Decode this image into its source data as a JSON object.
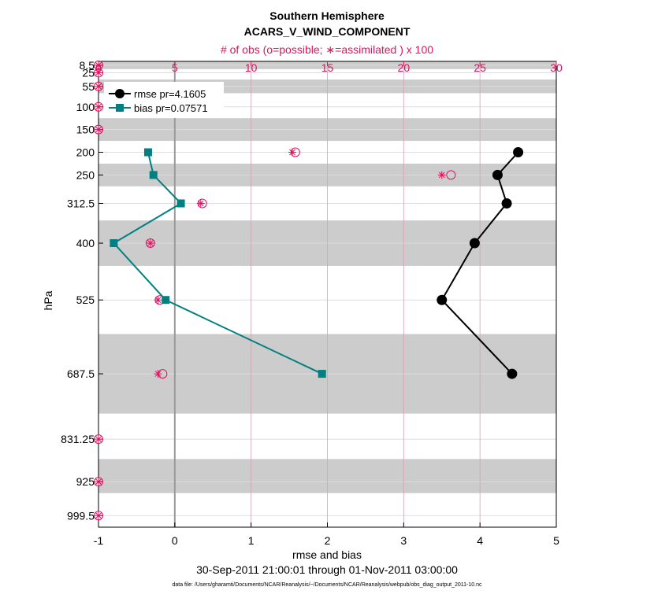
{
  "colors": {
    "rmse": "#000000",
    "bias": "#008080",
    "obs": "#e0115f",
    "band": "#cccccc",
    "grid": "#dddddd",
    "top_grid": "#d9a0b4",
    "zero_line": "#999999"
  },
  "chart_data": {
    "type": "line",
    "title": "Southern Hemisphere",
    "subtitle": "ACARS_V_WIND_COMPONENT",
    "top_axis_label": "# of obs (o=possible; ∗=assimilated ) x 100",
    "xlabel": "rmse and bias",
    "ylabel": "hPa",
    "date_range": "30-Sep-2011 21:00:01 through 01-Nov-2011 03:00:00",
    "footnote": "data file: /Users/gharamti/Documents/NCAR/Reanalysis/~/Documents/NCAR/Reanalysis/webpub/obs_diag_output_2011-10.nc",
    "xlim": [
      -1,
      5
    ],
    "xticks": [
      -1,
      0,
      1,
      2,
      3,
      4,
      5
    ],
    "top_xlim": [
      0,
      30
    ],
    "top_xticks": [
      0,
      5,
      10,
      15,
      20,
      25,
      30
    ],
    "ylim": [
      0,
      1025
    ],
    "yticks": [
      8.5,
      25,
      55,
      100,
      150,
      200,
      250,
      312.5,
      400,
      525,
      687.5,
      831.25,
      925,
      999.5
    ],
    "ytick_labels": [
      "8.5",
      "25",
      "55",
      "100",
      "150",
      "200",
      "250",
      "312.5",
      "400",
      "525",
      "687.5",
      "831.25",
      "925",
      "999.5"
    ],
    "bands": [
      [
        0,
        17
      ],
      [
        40,
        70
      ],
      [
        125,
        175
      ],
      [
        225,
        275
      ],
      [
        350,
        450
      ],
      [
        600,
        775
      ],
      [
        875,
        950
      ]
    ],
    "series": [
      {
        "name": "rmse pr=4.1605",
        "levels": [
          200,
          250,
          312.5,
          400,
          525,
          687.5
        ],
        "values": [
          4.5,
          4.23,
          4.35,
          3.93,
          3.5,
          4.42
        ]
      },
      {
        "name": "bias pr=0.07571",
        "levels": [
          200,
          250,
          312.5,
          400,
          525,
          687.5
        ],
        "values": [
          -0.35,
          -0.28,
          0.08,
          -0.8,
          -0.12,
          1.93
        ]
      }
    ],
    "obs_possible": {
      "levels": [
        8.5,
        25,
        55,
        100,
        150,
        200,
        250,
        312.5,
        400,
        525,
        687.5,
        831.25,
        925,
        999.5
      ],
      "values": [
        0,
        0,
        0,
        0,
        0,
        12.9,
        23.1,
        6.8,
        3.4,
        4.0,
        4.2,
        0,
        0,
        0
      ]
    },
    "obs_assimilated": {
      "levels": [
        8.5,
        25,
        55,
        100,
        150,
        200,
        250,
        312.5,
        400,
        525,
        687.5,
        831.25,
        925,
        999.5
      ],
      "values": [
        0,
        0,
        0,
        0,
        0,
        12.7,
        22.5,
        6.7,
        3.4,
        3.9,
        3.9,
        0,
        0,
        0
      ]
    }
  }
}
